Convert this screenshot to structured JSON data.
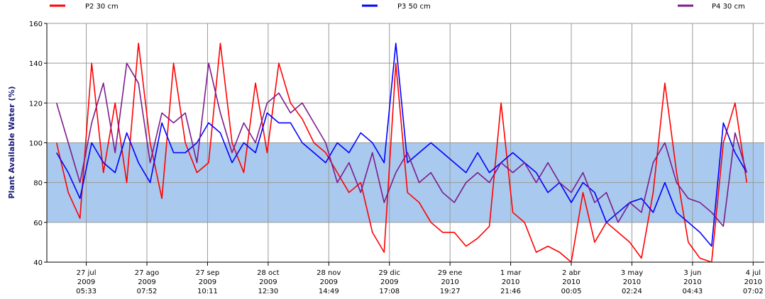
{
  "chart_data": {
    "type": "line",
    "y_label": "Plant Available Water (%)",
    "legend": "top",
    "grid": true,
    "shaded_range": {
      "from": 60,
      "to": 100,
      "color": "#a9c9ee"
    },
    "x": [
      "2009-07-12T00:00",
      "2009-07-18T00:00",
      "2009-07-24T00:00",
      "2009-07-30T00:00",
      "2009-08-05T00:00",
      "2009-08-11T00:00",
      "2009-08-17T00:00",
      "2009-08-23T00:00",
      "2009-08-29T00:00",
      "2009-09-04T00:00",
      "2009-09-10T00:00",
      "2009-09-16T00:00",
      "2009-09-22T00:00",
      "2009-09-28T00:00",
      "2009-10-04T00:00",
      "2009-10-10T00:00",
      "2009-10-16T00:00",
      "2009-10-22T00:00",
      "2009-10-28T00:00",
      "2009-11-03T00:00",
      "2009-11-09T00:00",
      "2009-11-15T00:00",
      "2009-11-21T00:00",
      "2009-11-27T00:00",
      "2009-12-03T00:00",
      "2009-12-09T00:00",
      "2009-12-15T00:00",
      "2009-12-21T00:00",
      "2009-12-27T00:00",
      "2010-01-02T00:00",
      "2010-01-08T00:00",
      "2010-01-14T00:00",
      "2010-01-20T00:00",
      "2010-01-26T00:00",
      "2010-02-01T00:00",
      "2010-02-07T00:00",
      "2010-02-13T00:00",
      "2010-02-19T00:00",
      "2010-02-25T00:00",
      "2010-03-03T00:00",
      "2010-03-09T00:00",
      "2010-03-15T00:00",
      "2010-03-21T00:00",
      "2010-03-27T00:00",
      "2010-04-02T00:00",
      "2010-04-08T00:00",
      "2010-04-14T00:00",
      "2010-04-20T00:00",
      "2010-04-26T00:00",
      "2010-05-02T00:00",
      "2010-05-08T00:00",
      "2010-05-14T00:00",
      "2010-05-20T00:00",
      "2010-05-26T00:00",
      "2010-06-01T00:00",
      "2010-06-07T00:00",
      "2010-06-13T00:00",
      "2010-06-19T00:00",
      "2010-06-25T00:00",
      "2010-07-01T00:00"
    ],
    "series": [
      {
        "name": "P2 30 cm",
        "color": "#ff0000",
        "values": [
          100,
          75,
          62,
          140,
          85,
          120,
          80,
          150,
          100,
          72,
          140,
          100,
          85,
          90,
          150,
          100,
          85,
          130,
          95,
          140,
          120,
          112,
          100,
          95,
          85,
          75,
          80,
          55,
          45,
          140,
          75,
          70,
          60,
          55,
          55,
          48,
          52,
          58,
          120,
          65,
          60,
          45,
          48,
          45,
          40,
          75,
          50,
          60,
          55,
          50,
          42,
          75,
          130,
          85,
          50,
          42,
          40,
          100,
          120,
          80
        ]
      },
      {
        "name": "P3 50 cm",
        "color": "#0000ff",
        "values": [
          95,
          85,
          72,
          100,
          90,
          85,
          105,
          90,
          80,
          110,
          95,
          95,
          100,
          110,
          105,
          90,
          100,
          95,
          115,
          110,
          110,
          100,
          95,
          90,
          100,
          95,
          105,
          100,
          90,
          150,
          90,
          95,
          100,
          95,
          90,
          85,
          95,
          85,
          90,
          95,
          90,
          85,
          75,
          80,
          70,
          80,
          75,
          60,
          65,
          70,
          72,
          65,
          80,
          65,
          60,
          55,
          48,
          110,
          95,
          85
        ]
      },
      {
        "name": "P4 30 cm",
        "color": "#7b1c8c",
        "values": [
          120,
          100,
          80,
          110,
          130,
          95,
          140,
          130,
          90,
          115,
          110,
          115,
          90,
          140,
          115,
          95,
          110,
          100,
          120,
          125,
          115,
          120,
          110,
          100,
          80,
          90,
          75,
          95,
          70,
          85,
          95,
          80,
          85,
          75,
          70,
          80,
          85,
          80,
          90,
          85,
          90,
          80,
          90,
          80,
          75,
          85,
          70,
          75,
          60,
          70,
          65,
          90,
          100,
          80,
          72,
          70,
          65,
          58,
          105,
          85
        ]
      }
    ],
    "xlim": [
      "2009-07-07T00:00",
      "2010-07-10T00:00"
    ],
    "xticks": [
      {
        "value": "2009-07-27T05:33",
        "label": [
          "27 jul",
          "2009",
          "05:33"
        ]
      },
      {
        "value": "2009-08-27T07:52",
        "label": [
          "27 ago",
          "2009",
          "07:52"
        ]
      },
      {
        "value": "2009-09-27T10:11",
        "label": [
          "27 sep",
          "2009",
          "10:11"
        ]
      },
      {
        "value": "2009-10-28T12:30",
        "label": [
          "28 oct",
          "2009",
          "12:30"
        ]
      },
      {
        "value": "2009-11-28T14:49",
        "label": [
          "28 nov",
          "2009",
          "14:49"
        ]
      },
      {
        "value": "2009-12-29T17:08",
        "label": [
          "29 dic",
          "2009",
          "17:08"
        ]
      },
      {
        "value": "2010-01-29T19:27",
        "label": [
          "29 ene",
          "2010",
          "19:27"
        ]
      },
      {
        "value": "2010-03-01T21:46",
        "label": [
          "1 mar",
          "2010",
          "21:46"
        ]
      },
      {
        "value": "2010-04-02T00:05",
        "label": [
          "2 abr",
          "2010",
          "00:05"
        ]
      },
      {
        "value": "2010-05-03T02:24",
        "label": [
          "3 may",
          "2010",
          "02:24"
        ]
      },
      {
        "value": "2010-06-03T04:43",
        "label": [
          "3 jun",
          "2010",
          "04:43"
        ]
      },
      {
        "value": "2010-07-04T07:02",
        "label": [
          "4 jul",
          "2010",
          "07:02"
        ]
      }
    ],
    "ylim": [
      40,
      160
    ],
    "yticks": [
      40,
      60,
      80,
      100,
      120,
      140,
      160
    ]
  }
}
